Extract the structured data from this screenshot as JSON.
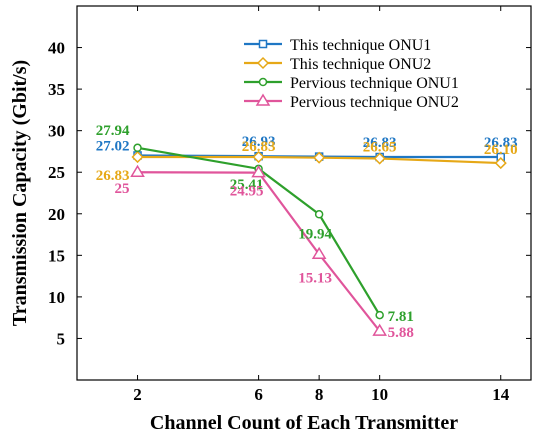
{
  "chart_data": {
    "type": "line",
    "xlabel": "Channel Count of Each Transmitter",
    "ylabel": "Transmission Capacity (Gbit/s)",
    "xlim": [
      0,
      15
    ],
    "ylim": [
      0,
      45
    ],
    "xticks": [
      2,
      6,
      8,
      10,
      14
    ],
    "yticks": [
      5,
      10,
      15,
      20,
      25,
      30,
      35,
      40
    ],
    "grid": false,
    "legend_placement": "top-right",
    "series": [
      {
        "name": "This technique ONU1",
        "color": "#1f77c4",
        "marker": "square",
        "x": [
          2,
          6,
          8,
          10,
          14
        ],
        "y": [
          27.02,
          26.93,
          26.88,
          26.83,
          26.83
        ],
        "labels": [
          {
            "x": 2,
            "text": "27.02"
          },
          {
            "x": 6,
            "text": "26.93"
          },
          {
            "x": 10,
            "text": "26.83"
          },
          {
            "x": 14,
            "text": "26.83"
          }
        ]
      },
      {
        "name": "This technique ONU2",
        "color": "#e6a817",
        "marker": "diamond",
        "x": [
          2,
          6,
          8,
          10,
          14
        ],
        "y": [
          26.83,
          26.83,
          26.75,
          26.65,
          26.1
        ],
        "labels": [
          {
            "x": 2,
            "text": "26.83"
          },
          {
            "x": 6,
            "text": "26.83"
          },
          {
            "x": 10,
            "text": "26.65"
          },
          {
            "x": 14,
            "text": "26.10"
          }
        ]
      },
      {
        "name": "Pervious technique ONU1",
        "color": "#2ea02c",
        "marker": "circle",
        "x": [
          2,
          6,
          8,
          10
        ],
        "y": [
          27.94,
          25.41,
          19.94,
          7.81
        ],
        "labels": [
          {
            "x": 2,
            "text": "27.94"
          },
          {
            "x": 6,
            "text": "25.41"
          },
          {
            "x": 8,
            "text": "19.94"
          },
          {
            "x": 10,
            "text": "7.81"
          }
        ]
      },
      {
        "name": "Pervious technique ONU2",
        "color": "#e0559b",
        "marker": "triangle",
        "x": [
          2,
          6,
          8,
          10
        ],
        "y": [
          25,
          24.95,
          15.13,
          5.88
        ],
        "labels": [
          {
            "x": 2,
            "text": "25"
          },
          {
            "x": 6,
            "text": "24.95"
          },
          {
            "x": 8,
            "text": "15.13"
          },
          {
            "x": 10,
            "text": "5.88"
          }
        ]
      }
    ]
  }
}
